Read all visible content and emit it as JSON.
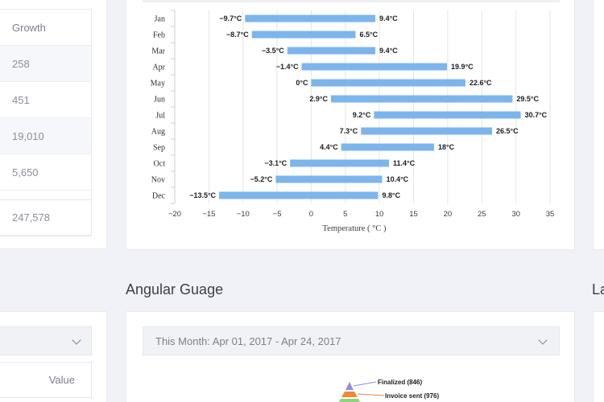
{
  "left_table": {
    "header": "Growth",
    "rows": [
      "258",
      "451",
      "19,010",
      "5,650"
    ],
    "total": "247,578"
  },
  "chart_data": {
    "type": "bar",
    "subtype": "floating-range-horizontal",
    "categories": [
      "Jan",
      "Feb",
      "Mar",
      "Apr",
      "May",
      "Jun",
      "Jul",
      "Aug",
      "Sep",
      "Oct",
      "Nov",
      "Dec"
    ],
    "series": [
      {
        "low": [
          -9.7,
          -8.7,
          -3.5,
          -1.4,
          0,
          2.9,
          9.2,
          7.3,
          4.4,
          -3.1,
          -5.2,
          -13.5
        ],
        "high": [
          9.4,
          6.5,
          9.4,
          19.9,
          22.6,
          29.5,
          30.7,
          26.5,
          18,
          11.4,
          10.4,
          9.8
        ],
        "low_labels": [
          "−9.7°C",
          "−8.7°C",
          "−3.5°C",
          "−1.4°C",
          "0°C",
          "2.9°C",
          "9.2°C",
          "7.3°C",
          "4.4°C",
          "−3.1°C",
          "−5.2°C",
          "−13.5°C"
        ],
        "high_labels": [
          "9.4°C",
          "6.5°C",
          "9.4°C",
          "19.9°C",
          "22.6°C",
          "29.5°C",
          "30.7°C",
          "26.5°C",
          "18°C",
          "11.4°C",
          "10.4°C",
          "9.8°C"
        ]
      }
    ],
    "x_ticks": [
      "−20",
      "−15",
      "−10",
      "−5",
      "0",
      "5",
      "10",
      "15",
      "20",
      "25",
      "30",
      "35"
    ],
    "xlim": [
      -20,
      35
    ],
    "xlabel": "Temperature ( °C )",
    "grid": true,
    "bar_color": "#7cb5ec"
  },
  "sections": {
    "angular_title": "Angular Guage",
    "right_title": "La"
  },
  "angular": {
    "date_range": "This Month: Apr 01, 2017 - Apr 24, 2017",
    "funnel": [
      {
        "label": "Finalized (846)",
        "color": "#8e8ee0"
      },
      {
        "label": "Invoice sent (976)",
        "color": "#f0883a"
      },
      {
        "label": "",
        "color": "#8fd47b"
      }
    ]
  },
  "low_left": {
    "value_header": "Value"
  }
}
